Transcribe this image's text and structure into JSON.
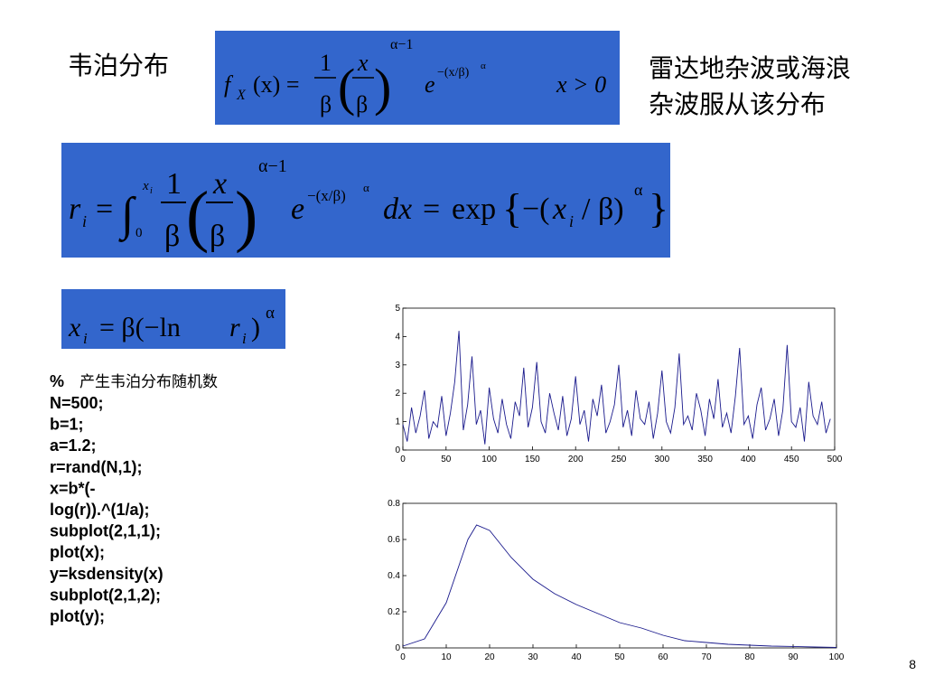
{
  "header": {
    "title": "韦泊分布",
    "description": [
      "雷达地杂波或海浪",
      "杂波服从该分布"
    ]
  },
  "formulas": [
    {
      "tokens": [
        "f",
        "X",
        "(x) =",
        "1",
        "β",
        "(",
        "x",
        "β",
        ")",
        "α−1",
        "e",
        "−(x/β)",
        "α",
        "x > 0"
      ]
    },
    {
      "tokens": [
        "r",
        "i",
        "=",
        "∫",
        "x",
        "i",
        "0",
        "1",
        "β",
        "(",
        "x",
        "β",
        ")",
        "α−1",
        "e",
        "−(x/β)",
        "α",
        "dx",
        "=",
        "exp",
        "{",
        "−(",
        "x",
        "i",
        "/ β)",
        "α",
        "}"
      ]
    },
    {
      "tokens": [
        "x",
        "i",
        "= β(−ln",
        "r",
        "i",
        ")",
        "α"
      ]
    }
  ],
  "code": {
    "comment_symbol": "%",
    "comment": "产生韦泊分布随机数",
    "lines": [
      "N=500;",
      "b=1;",
      "a=1.2;",
      "r=rand(N,1);",
      "x=b*(-",
      "log(r)).^(1/a);",
      "subplot(2,1,1);",
      "plot(x);",
      "y=ksdensity(x)",
      "subplot(2,1,2);",
      "plot(y);"
    ]
  },
  "chart_data": [
    {
      "type": "line",
      "color": "#1a1a8c",
      "x": [
        0,
        5,
        10,
        15,
        20,
        25,
        30,
        35,
        40,
        45,
        50,
        55,
        60,
        65,
        70,
        75,
        80,
        85,
        90,
        95,
        100,
        105,
        110,
        115,
        120,
        125,
        130,
        135,
        140,
        145,
        150,
        155,
        160,
        165,
        170,
        175,
        180,
        185,
        190,
        195,
        200,
        205,
        210,
        215,
        220,
        225,
        230,
        235,
        240,
        245,
        250,
        255,
        260,
        265,
        270,
        275,
        280,
        285,
        290,
        295,
        300,
        305,
        310,
        315,
        320,
        325,
        330,
        335,
        340,
        345,
        350,
        355,
        360,
        365,
        370,
        375,
        380,
        385,
        390,
        395,
        400,
        405,
        410,
        415,
        420,
        425,
        430,
        435,
        440,
        445,
        450,
        455,
        460,
        465,
        470,
        475,
        480,
        485,
        490,
        495
      ],
      "values": [
        0.9,
        0.3,
        1.5,
        0.6,
        1.2,
        2.1,
        0.4,
        1.0,
        0.8,
        1.9,
        0.5,
        1.3,
        2.4,
        4.2,
        0.7,
        1.6,
        3.3,
        0.9,
        1.4,
        0.2,
        2.2,
        1.1,
        0.6,
        1.8,
        0.9,
        0.4,
        1.7,
        1.2,
        2.9,
        0.8,
        1.5,
        3.1,
        1.0,
        0.6,
        2.0,
        1.3,
        0.7,
        1.9,
        0.5,
        1.1,
        2.6,
        0.9,
        1.4,
        0.3,
        1.8,
        1.2,
        2.3,
        0.6,
        1.0,
        1.6,
        3.0,
        0.8,
        1.4,
        0.5,
        2.1,
        1.1,
        0.9,
        1.7,
        0.4,
        1.3,
        2.8,
        1.0,
        0.6,
        1.5,
        3.4,
        0.9,
        1.2,
        0.7,
        2.0,
        1.4,
        0.5,
        1.8,
        1.1,
        2.5,
        0.8,
        1.3,
        0.6,
        1.9,
        3.6,
        0.9,
        1.2,
        0.4,
        1.6,
        2.2,
        0.7,
        1.1,
        1.8,
        0.5,
        1.4,
        3.7,
        1.0,
        0.8,
        1.5,
        0.3,
        2.4,
        1.2,
        0.9,
        1.7,
        0.6,
        1.1
      ],
      "xlim": [
        0,
        500
      ],
      "xticks": [
        0,
        50,
        100,
        150,
        200,
        250,
        300,
        350,
        400,
        450,
        500
      ],
      "ylim": [
        0,
        5
      ],
      "yticks": [
        0,
        1,
        2,
        3,
        4,
        5
      ]
    },
    {
      "type": "line",
      "color": "#1a1a8c",
      "x": [
        0,
        5,
        10,
        15,
        17,
        20,
        25,
        30,
        35,
        40,
        45,
        50,
        55,
        60,
        65,
        70,
        75,
        80,
        85,
        90,
        95,
        100
      ],
      "values": [
        0.01,
        0.05,
        0.25,
        0.6,
        0.68,
        0.65,
        0.5,
        0.38,
        0.3,
        0.24,
        0.19,
        0.14,
        0.11,
        0.07,
        0.04,
        0.03,
        0.02,
        0.015,
        0.01,
        0.008,
        0.005,
        0.003
      ],
      "xlim": [
        0,
        100
      ],
      "xticks": [
        0,
        10,
        20,
        30,
        40,
        50,
        60,
        70,
        80,
        90,
        100
      ],
      "ylim": [
        0,
        0.8
      ],
      "yticks": [
        0,
        0.2,
        0.4,
        0.6,
        0.8
      ]
    }
  ],
  "page_number": "8"
}
